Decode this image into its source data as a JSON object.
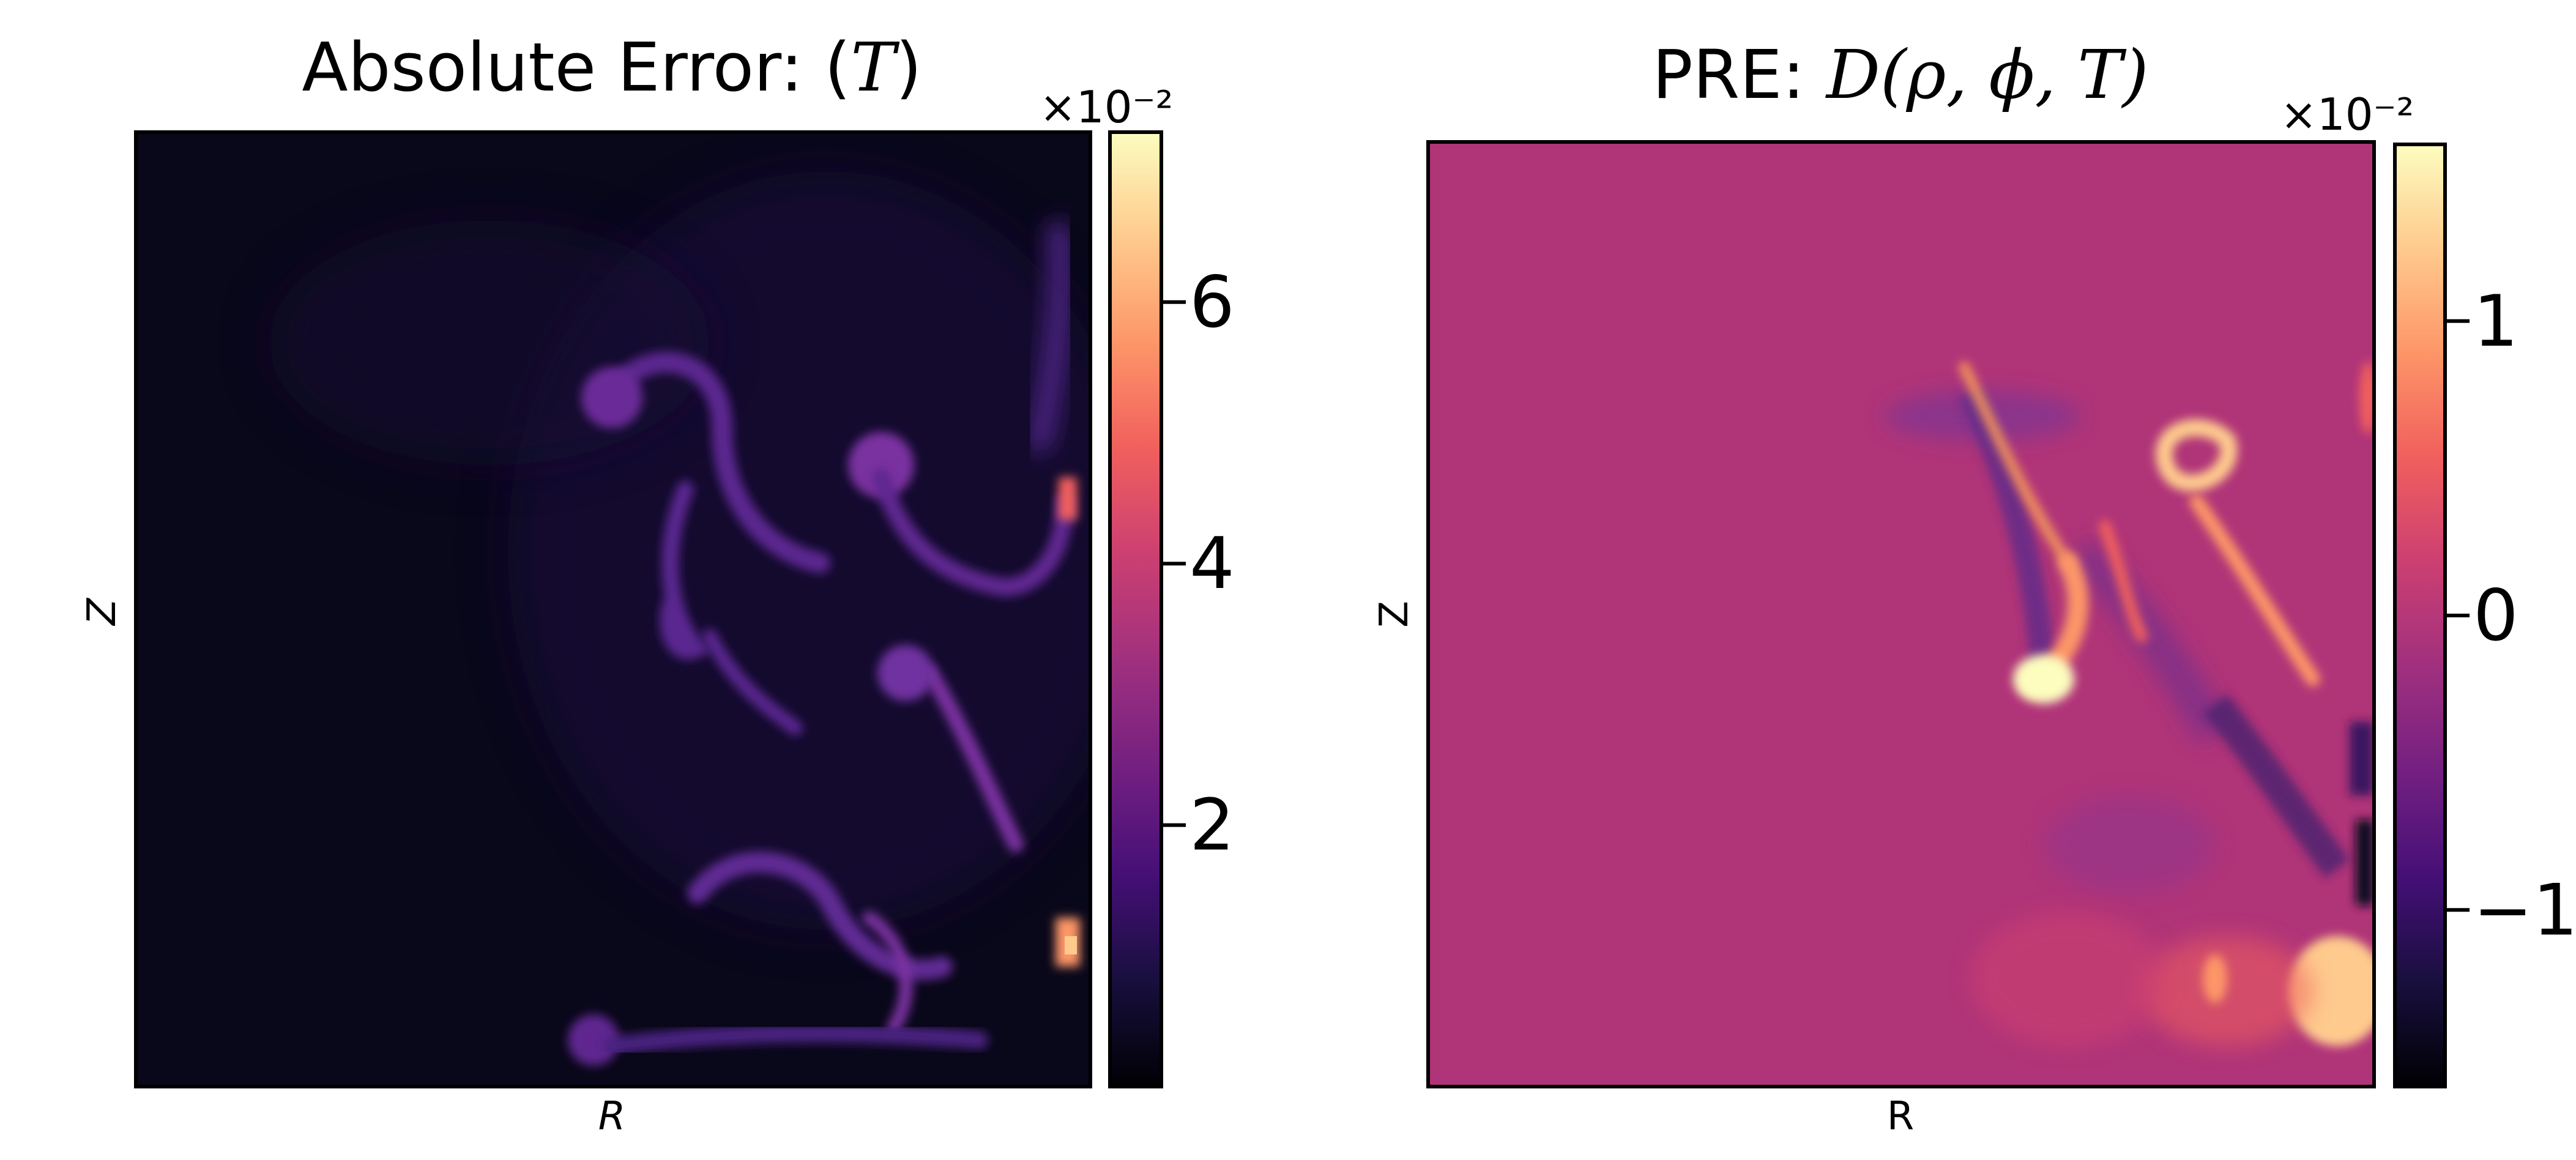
{
  "chart_data": [
    {
      "type": "heatmap",
      "title": "Absolute Error: (T)",
      "title_prefix": "Absolute Error: (",
      "title_var": "T",
      "title_suffix": ")",
      "xlabel": "R",
      "ylabel": "Z",
      "colormap": "magma",
      "colorbar": {
        "range": [
          0,
          7.3
        ],
        "ticks": [
          2,
          4,
          6
        ],
        "tick_labels": [
          "2",
          "4",
          "6"
        ],
        "exponent_label": "×10⁻²"
      },
      "value_summary": {
        "background": 0.3,
        "max": 7.3
      }
    },
    {
      "type": "heatmap",
      "title": "PRE: D(ρ, ϕ, T)",
      "title_prefix": "PRE: ",
      "title_math": "D(ρ, ϕ, T)",
      "xlabel": "R",
      "ylabel": "Z",
      "colormap": "magma",
      "colorbar": {
        "range": [
          -1.6,
          1.6
        ],
        "ticks": [
          1,
          0,
          -1
        ],
        "tick_labels": [
          "1",
          "0",
          "−1"
        ],
        "exponent_label": "×10⁻²"
      },
      "value_summary": {
        "background": 0,
        "min": -1.6,
        "max": 1.6
      }
    }
  ],
  "colors": {
    "magma": [
      "#000004",
      "#180f3d",
      "#440f76",
      "#721f81",
      "#9e2f7f",
      "#cd4071",
      "#f1605d",
      "#fd9668",
      "#feca8d",
      "#fcfdbf"
    ]
  }
}
